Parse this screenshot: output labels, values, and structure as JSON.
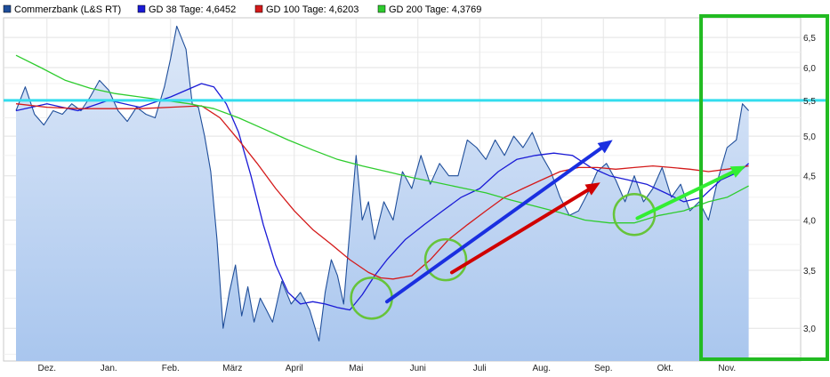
{
  "chart_data": {
    "type": "line",
    "title": "",
    "xlabel": "",
    "ylabel": "",
    "y_scale": "log",
    "ylim": [
      2.75,
      6.85
    ],
    "grid": true,
    "legend_position": "top-left",
    "x_ticks": [
      "Dez.",
      "Jan.",
      "Feb.",
      "März",
      "April",
      "Mai",
      "Juni",
      "Juli",
      "Aug.",
      "Sep.",
      "Okt.",
      "Nov."
    ],
    "y_ticks": [
      "3,0",
      "3,5",
      "4,0",
      "4,5",
      "5,0",
      "5,5",
      "6,0",
      "6,5"
    ],
    "y_tick_values": [
      3.0,
      3.5,
      4.0,
      4.5,
      5.0,
      5.5,
      6.0,
      6.5
    ],
    "colors": {
      "price": "#1f4e9a",
      "price_fill_top": "#dde8f8",
      "price_fill_bottom": "#a9c6ee",
      "gd38": "#1a1ad6",
      "gd100": "#d41a1a",
      "gd200": "#2ecc2e",
      "horizontal_line": "#33ddee",
      "annotation_box": "#22bb22",
      "circle": "#66c43a",
      "arrow_blue": "#1a2fe0",
      "arrow_red": "#d00000",
      "arrow_green": "#33ee33"
    },
    "series": [
      {
        "name": "Commerzbank (L&S RT)",
        "key": "price",
        "x": [
          0,
          0.15,
          0.3,
          0.45,
          0.6,
          0.75,
          0.9,
          1.05,
          1.2,
          1.35,
          1.5,
          1.65,
          1.8,
          1.95,
          2.1,
          2.25,
          2.4,
          2.5,
          2.6,
          2.75,
          2.85,
          2.95,
          3.05,
          3.15,
          3.25,
          3.35,
          3.45,
          3.55,
          3.65,
          3.75,
          3.85,
          3.95,
          4.05,
          4.15,
          4.3,
          4.45,
          4.6,
          4.75,
          4.9,
          5.0,
          5.1,
          5.2,
          5.3,
          5.4,
          5.5,
          5.6,
          5.7,
          5.8,
          5.95,
          6.1,
          6.25,
          6.4,
          6.55,
          6.7,
          6.85,
          7.0,
          7.15,
          7.3,
          7.45,
          7.6,
          7.75,
          7.9,
          8.05,
          8.2,
          8.35,
          8.5,
          8.65,
          8.8,
          8.95,
          9.1,
          9.25,
          9.4,
          9.55,
          9.7,
          9.85,
          10.0,
          10.15,
          10.3,
          10.45,
          10.6,
          10.75,
          10.9,
          11.05,
          11.2,
          11.35,
          11.5,
          11.65,
          11.75,
          11.85
        ],
        "values": [
          5.35,
          5.7,
          5.3,
          5.15,
          5.35,
          5.3,
          5.45,
          5.35,
          5.55,
          5.8,
          5.65,
          5.35,
          5.2,
          5.4,
          5.3,
          5.25,
          5.7,
          6.15,
          6.7,
          6.3,
          5.45,
          5.4,
          5.0,
          4.55,
          3.8,
          3.0,
          3.3,
          3.55,
          3.1,
          3.35,
          3.05,
          3.25,
          3.15,
          3.05,
          3.4,
          3.2,
          3.3,
          3.15,
          2.9,
          3.3,
          3.6,
          3.45,
          3.2,
          3.9,
          4.75,
          4.0,
          4.2,
          3.8,
          4.2,
          4.0,
          4.55,
          4.35,
          4.75,
          4.4,
          4.65,
          4.5,
          4.5,
          4.95,
          4.85,
          4.7,
          4.95,
          4.75,
          5.0,
          4.85,
          5.05,
          4.75,
          4.55,
          4.25,
          4.05,
          4.1,
          4.3,
          4.55,
          4.65,
          4.45,
          4.2,
          4.5,
          4.2,
          4.35,
          4.6,
          4.25,
          4.4,
          4.1,
          4.2,
          4.0,
          4.45,
          4.85,
          4.95,
          5.45,
          5.35
        ]
      },
      {
        "name": "GD 38 Tage: 4,6452",
        "key": "gd38",
        "x": [
          0,
          0.5,
          1.0,
          1.5,
          2.0,
          2.5,
          3.0,
          3.2,
          3.4,
          3.6,
          3.8,
          4.0,
          4.2,
          4.4,
          4.6,
          4.8,
          5.0,
          5.2,
          5.4,
          5.6,
          5.8,
          6.0,
          6.3,
          6.6,
          6.9,
          7.2,
          7.5,
          7.8,
          8.1,
          8.4,
          8.7,
          9.0,
          9.3,
          9.6,
          9.9,
          10.2,
          10.5,
          10.8,
          11.1,
          11.4,
          11.7,
          11.85
        ],
        "values": [
          5.35,
          5.45,
          5.35,
          5.5,
          5.4,
          5.55,
          5.75,
          5.7,
          5.45,
          5.05,
          4.5,
          3.95,
          3.55,
          3.3,
          3.2,
          3.22,
          3.2,
          3.17,
          3.15,
          3.28,
          3.45,
          3.6,
          3.8,
          3.95,
          4.1,
          4.25,
          4.35,
          4.55,
          4.7,
          4.75,
          4.78,
          4.75,
          4.6,
          4.5,
          4.45,
          4.4,
          4.3,
          4.2,
          4.25,
          4.45,
          4.55,
          4.65
        ]
      },
      {
        "name": "GD 100 Tage: 4,6203",
        "key": "gd100",
        "x": [
          0,
          0.5,
          1.0,
          1.5,
          2.0,
          2.5,
          3.0,
          3.3,
          3.6,
          3.9,
          4.2,
          4.5,
          4.8,
          5.1,
          5.4,
          5.7,
          5.9,
          6.1,
          6.4,
          6.7,
          7.0,
          7.3,
          7.6,
          7.9,
          8.2,
          8.5,
          8.8,
          9.1,
          9.4,
          9.7,
          10.0,
          10.3,
          10.6,
          10.9,
          11.2,
          11.5,
          11.85
        ],
        "values": [
          5.45,
          5.4,
          5.38,
          5.38,
          5.38,
          5.4,
          5.42,
          5.25,
          4.95,
          4.65,
          4.35,
          4.1,
          3.9,
          3.75,
          3.6,
          3.48,
          3.43,
          3.42,
          3.45,
          3.6,
          3.8,
          3.95,
          4.1,
          4.25,
          4.35,
          4.45,
          4.55,
          4.6,
          4.6,
          4.58,
          4.6,
          4.62,
          4.6,
          4.58,
          4.55,
          4.58,
          4.62
        ]
      },
      {
        "name": "GD 200 Tage: 4,3769",
        "key": "gd200",
        "x": [
          0,
          0.4,
          0.8,
          1.2,
          1.6,
          2.0,
          2.4,
          2.8,
          3.2,
          3.6,
          4.0,
          4.4,
          4.8,
          5.2,
          5.6,
          6.0,
          6.4,
          6.8,
          7.2,
          7.6,
          8.0,
          8.4,
          8.8,
          9.2,
          9.6,
          10.0,
          10.4,
          10.8,
          11.2,
          11.5,
          11.85
        ],
        "values": [
          6.2,
          6.0,
          5.8,
          5.68,
          5.6,
          5.55,
          5.5,
          5.45,
          5.38,
          5.25,
          5.1,
          4.95,
          4.82,
          4.7,
          4.62,
          4.55,
          4.48,
          4.42,
          4.36,
          4.3,
          4.22,
          4.15,
          4.08,
          4.0,
          3.97,
          3.97,
          4.05,
          4.1,
          4.2,
          4.25,
          4.38
        ]
      }
    ],
    "horizontal_lines": [
      {
        "value": 5.5
      }
    ],
    "annotations": {
      "arrows": [
        {
          "key": "arrow_blue",
          "from": [
            6.0,
            3.22
          ],
          "to": [
            9.65,
            4.95
          ]
        },
        {
          "key": "arrow_red",
          "from": [
            7.05,
            3.48
          ],
          "to": [
            9.45,
            4.42
          ]
        },
        {
          "key": "arrow_green",
          "from": [
            10.05,
            4.02
          ],
          "to": [
            11.8,
            4.62
          ]
        }
      ],
      "circles": [
        {
          "key": "circle",
          "center": [
            5.75,
            3.25
          ]
        },
        {
          "key": "circle",
          "center": [
            6.95,
            3.6
          ]
        },
        {
          "key": "circle",
          "center": [
            10.0,
            4.06
          ]
        }
      ],
      "highlight_box": {
        "key": "annotation_box",
        "x_range": [
          11.08,
          13.0
        ],
        "y_range": [
          2.7,
          7.5
        ]
      }
    }
  }
}
